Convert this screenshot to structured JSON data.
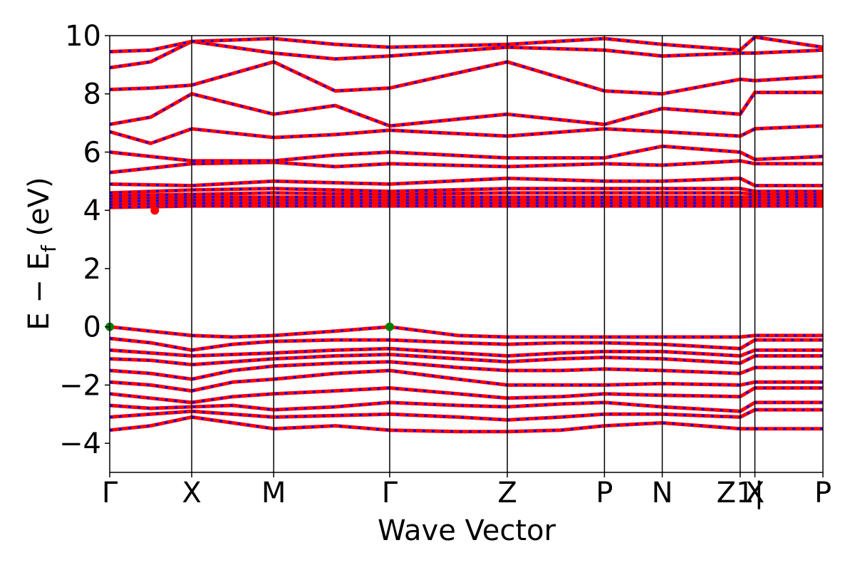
{
  "chart_data": {
    "type": "line",
    "xlabel": "Wave Vector",
    "ylabel": "E − Ef (eV)",
    "ylabel_parts": {
      "main": "E − E",
      "sub": "f",
      "unit": " (eV)"
    },
    "ylim": [
      -5,
      10
    ],
    "y_ticks": [
      -4,
      -2,
      0,
      2,
      4,
      6,
      8,
      10
    ],
    "y_tick_labels": [
      "−4",
      "−2",
      "0",
      "2",
      "4",
      "6",
      "8",
      "10"
    ],
    "grid": false,
    "kpath": [
      {
        "label": "Γ",
        "x": 0.0
      },
      {
        "label": "X",
        "x": 0.2
      },
      {
        "label": "M",
        "x": 0.4
      },
      {
        "label": "Γ",
        "x": 0.683
      },
      {
        "label": "Z",
        "x": 0.97
      },
      {
        "label": "P",
        "x": 1.207
      },
      {
        "label": "N",
        "x": 1.348
      },
      {
        "label": "Z1|",
        "x": 1.538
      },
      {
        "label": "X",
        "x": 1.574
      },
      {
        "label": "P",
        "x": 1.74
      }
    ],
    "xlim": [
      0.0,
      1.74
    ],
    "series_colors": [
      "#ff0000",
      "#0000ff"
    ],
    "band_edges": {
      "vbm": {
        "x": [
          0.0,
          0.683
        ],
        "y": 0.0,
        "color": "#008000"
      },
      "cbm": {
        "x": 0.11,
        "y": 4.0,
        "color": "#ff0000"
      }
    },
    "bands": [
      {
        "x": [
          0.0,
          0.1,
          0.2,
          0.3,
          0.4,
          0.55,
          0.683,
          0.85,
          0.97,
          1.1,
          1.207,
          1.348,
          1.538,
          1.574,
          1.74
        ],
        "y": [
          0.0,
          -0.15,
          -0.3,
          -0.35,
          -0.3,
          -0.15,
          0.0,
          -0.3,
          -0.35,
          -0.35,
          -0.35,
          -0.35,
          -0.35,
          -0.3,
          -0.3
        ]
      },
      {
        "x": [
          0.0,
          0.1,
          0.2,
          0.3,
          0.4,
          0.55,
          0.683,
          0.85,
          0.97,
          1.1,
          1.207,
          1.348,
          1.538,
          1.574,
          1.74
        ],
        "y": [
          -0.4,
          -0.55,
          -0.8,
          -0.6,
          -0.5,
          -0.45,
          -0.45,
          -0.55,
          -0.6,
          -0.55,
          -0.55,
          -0.6,
          -0.75,
          -0.45,
          -0.45
        ]
      },
      {
        "x": [
          0.0,
          0.1,
          0.2,
          0.3,
          0.4,
          0.55,
          0.683,
          0.85,
          0.97,
          1.1,
          1.207,
          1.348,
          1.538,
          1.574,
          1.74
        ],
        "y": [
          -0.8,
          -0.9,
          -1.0,
          -0.95,
          -0.9,
          -0.8,
          -0.75,
          -0.9,
          -1.0,
          -0.9,
          -0.85,
          -0.85,
          -1.0,
          -0.8,
          -0.8
        ]
      },
      {
        "x": [
          0.0,
          0.1,
          0.2,
          0.3,
          0.4,
          0.55,
          0.683,
          0.85,
          0.97,
          1.1,
          1.207,
          1.348,
          1.538,
          1.574,
          1.74
        ],
        "y": [
          -1.1,
          -1.15,
          -1.3,
          -1.2,
          -1.1,
          -1.0,
          -0.95,
          -1.1,
          -1.2,
          -1.1,
          -1.05,
          -1.1,
          -1.25,
          -1.0,
          -1.0
        ]
      },
      {
        "x": [
          0.0,
          0.1,
          0.2,
          0.3,
          0.4,
          0.55,
          0.683,
          0.85,
          0.97,
          1.1,
          1.207,
          1.348,
          1.538,
          1.574,
          1.74
        ],
        "y": [
          -1.5,
          -1.6,
          -1.8,
          -1.5,
          -1.35,
          -1.25,
          -1.2,
          -1.4,
          -1.5,
          -1.5,
          -1.45,
          -1.5,
          -1.6,
          -1.4,
          -1.4
        ]
      },
      {
        "x": [
          0.0,
          0.1,
          0.2,
          0.3,
          0.4,
          0.55,
          0.683,
          0.85,
          0.97,
          1.1,
          1.207,
          1.348,
          1.538,
          1.574,
          1.74
        ],
        "y": [
          -1.9,
          -2.0,
          -2.2,
          -1.9,
          -1.8,
          -1.6,
          -1.5,
          -1.8,
          -2.0,
          -2.0,
          -2.0,
          -1.95,
          -2.0,
          -1.9,
          -1.9
        ]
      },
      {
        "x": [
          0.0,
          0.1,
          0.2,
          0.3,
          0.4,
          0.55,
          0.683,
          0.85,
          0.97,
          1.1,
          1.207,
          1.348,
          1.538,
          1.574,
          1.74
        ],
        "y": [
          -2.3,
          -2.45,
          -2.6,
          -2.4,
          -2.3,
          -2.2,
          -2.1,
          -2.3,
          -2.45,
          -2.4,
          -2.3,
          -2.35,
          -2.4,
          -2.1,
          -2.1
        ]
      },
      {
        "x": [
          0.0,
          0.1,
          0.2,
          0.3,
          0.4,
          0.55,
          0.683,
          0.85,
          0.97,
          1.1,
          1.207,
          1.348,
          1.538,
          1.574,
          1.74
        ],
        "y": [
          -2.7,
          -2.8,
          -2.75,
          -2.7,
          -2.85,
          -2.75,
          -2.6,
          -2.7,
          -2.75,
          -2.65,
          -2.6,
          -2.75,
          -2.9,
          -2.6,
          -2.6
        ]
      },
      {
        "x": [
          0.0,
          0.1,
          0.2,
          0.3,
          0.4,
          0.55,
          0.683,
          0.85,
          0.97,
          1.1,
          1.207,
          1.348,
          1.538,
          1.574,
          1.74
        ],
        "y": [
          -3.1,
          -3.0,
          -2.9,
          -3.0,
          -3.1,
          -3.05,
          -3.0,
          -3.1,
          -3.2,
          -3.1,
          -3.0,
          -3.0,
          -3.1,
          -2.85,
          -2.85
        ]
      },
      {
        "x": [
          0.0,
          0.1,
          0.2,
          0.3,
          0.4,
          0.55,
          0.683,
          0.85,
          0.97,
          1.1,
          1.207,
          1.348,
          1.538,
          1.574,
          1.74
        ],
        "y": [
          -3.55,
          -3.4,
          -3.1,
          -3.3,
          -3.5,
          -3.4,
          -3.55,
          -3.6,
          -3.6,
          -3.55,
          -3.4,
          -3.3,
          -3.5,
          -3.5,
          -3.5
        ]
      },
      {
        "x": [
          0.0,
          0.2,
          0.4,
          0.683,
          0.97,
          1.207,
          1.348,
          1.538,
          1.574,
          1.74
        ],
        "y": [
          4.1,
          4.15,
          4.15,
          4.15,
          4.15,
          4.15,
          4.15,
          4.15,
          4.15,
          4.15
        ]
      },
      {
        "x": [
          0.0,
          0.2,
          0.4,
          0.683,
          0.97,
          1.207,
          1.348,
          1.538,
          1.574,
          1.74
        ],
        "y": [
          4.2,
          4.25,
          4.25,
          4.25,
          4.25,
          4.25,
          4.25,
          4.25,
          4.25,
          4.25
        ]
      },
      {
        "x": [
          0.0,
          0.2,
          0.4,
          0.683,
          0.97,
          1.207,
          1.348,
          1.538,
          1.574,
          1.74
        ],
        "y": [
          4.3,
          4.35,
          4.35,
          4.35,
          4.35,
          4.35,
          4.35,
          4.35,
          4.35,
          4.35
        ]
      },
      {
        "x": [
          0.0,
          0.2,
          0.4,
          0.683,
          0.97,
          1.207,
          1.348,
          1.538,
          1.574,
          1.74
        ],
        "y": [
          4.4,
          4.45,
          4.45,
          4.45,
          4.45,
          4.45,
          4.45,
          4.45,
          4.45,
          4.45
        ]
      },
      {
        "x": [
          0.0,
          0.2,
          0.4,
          0.683,
          0.97,
          1.207,
          1.348,
          1.538,
          1.574,
          1.74
        ],
        "y": [
          4.5,
          4.55,
          4.6,
          4.55,
          4.6,
          4.6,
          4.6,
          4.6,
          4.55,
          4.55
        ]
      },
      {
        "x": [
          0.0,
          0.2,
          0.4,
          0.683,
          0.97,
          1.207,
          1.348,
          1.538,
          1.574,
          1.74
        ],
        "y": [
          4.6,
          4.7,
          4.75,
          4.65,
          4.75,
          4.75,
          4.75,
          4.75,
          4.65,
          4.65
        ]
      },
      {
        "x": [
          0.0,
          0.2,
          0.4,
          0.683,
          0.97,
          1.207,
          1.348,
          1.538,
          1.574,
          1.74
        ],
        "y": [
          4.9,
          4.85,
          5.0,
          4.9,
          5.1,
          5.0,
          5.0,
          5.1,
          4.85,
          4.85
        ]
      },
      {
        "x": [
          0.0,
          0.2,
          0.4,
          0.55,
          0.683,
          0.97,
          1.207,
          1.348,
          1.538,
          1.574,
          1.74
        ],
        "y": [
          5.3,
          5.6,
          5.65,
          5.5,
          5.6,
          5.5,
          5.6,
          5.55,
          5.7,
          5.6,
          5.6
        ]
      },
      {
        "x": [
          0.0,
          0.2,
          0.4,
          0.55,
          0.683,
          0.97,
          1.207,
          1.348,
          1.538,
          1.574,
          1.74
        ],
        "y": [
          6.0,
          5.7,
          5.7,
          5.9,
          6.0,
          5.8,
          5.8,
          6.2,
          6.0,
          5.75,
          5.85
        ]
      },
      {
        "x": [
          0.0,
          0.1,
          0.2,
          0.4,
          0.55,
          0.683,
          0.97,
          1.207,
          1.348,
          1.538,
          1.574,
          1.74
        ],
        "y": [
          6.7,
          6.3,
          6.8,
          6.5,
          6.6,
          6.75,
          6.55,
          6.8,
          6.7,
          6.55,
          6.8,
          6.9
        ]
      },
      {
        "x": [
          0.0,
          0.1,
          0.2,
          0.4,
          0.55,
          0.683,
          0.97,
          1.207,
          1.348,
          1.538,
          1.574,
          1.74
        ],
        "y": [
          6.95,
          7.2,
          8.0,
          7.3,
          7.6,
          6.9,
          7.3,
          6.95,
          7.5,
          7.3,
          8.05,
          8.05
        ]
      },
      {
        "x": [
          0.0,
          0.1,
          0.2,
          0.4,
          0.55,
          0.683,
          0.97,
          1.207,
          1.348,
          1.538,
          1.574,
          1.74
        ],
        "y": [
          8.15,
          8.2,
          8.3,
          9.1,
          8.1,
          8.2,
          9.1,
          8.1,
          8.0,
          8.5,
          8.45,
          8.6
        ]
      },
      {
        "x": [
          0.0,
          0.1,
          0.2,
          0.4,
          0.55,
          0.683,
          0.97,
          1.207,
          1.348,
          1.538,
          1.574,
          1.74
        ],
        "y": [
          8.9,
          9.1,
          9.8,
          9.4,
          9.2,
          9.3,
          9.6,
          9.5,
          9.3,
          9.4,
          9.4,
          9.5
        ]
      },
      {
        "x": [
          0.0,
          0.1,
          0.2,
          0.4,
          0.55,
          0.683,
          0.97,
          1.207,
          1.348,
          1.538,
          1.574,
          1.74
        ],
        "y": [
          9.45,
          9.5,
          9.8,
          9.9,
          9.7,
          9.6,
          9.7,
          9.9,
          9.7,
          9.5,
          9.95,
          9.6
        ]
      }
    ]
  }
}
